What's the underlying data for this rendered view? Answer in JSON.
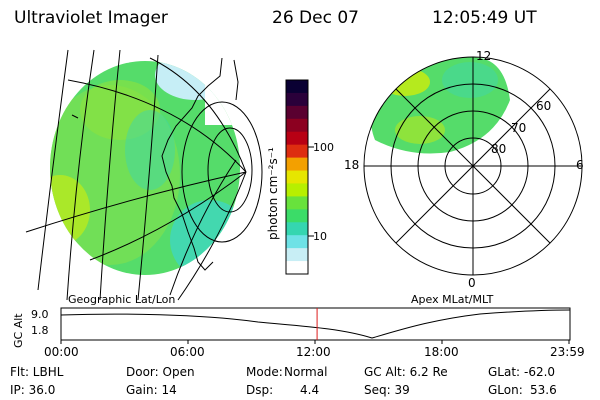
{
  "header": {
    "instrument": "Ultraviolet Imager",
    "date": "26 Dec 07",
    "time": "12:05:49 UT"
  },
  "colorbar": {
    "unit_label": "photon cm⁻²s⁻¹",
    "ticks": [
      "100",
      "10"
    ],
    "colors": [
      "#0a0033",
      "#2a003a",
      "#5a0030",
      "#8c0020",
      "#b80014",
      "#dd2d10",
      "#f3a000",
      "#e6e600",
      "#b7ef00",
      "#68e23c",
      "#3bdc68",
      "#35d6b0",
      "#6ee2e6",
      "#c8eef5",
      "#ffffff"
    ]
  },
  "polar_plot": {
    "title": "Apex MLat/MLT",
    "mlt_labels": {
      "top": "12",
      "bottom": "0",
      "left": "18",
      "right": "6"
    },
    "lat_labels": [
      "60",
      "70",
      "80"
    ]
  },
  "geo_plot": {
    "title": "Geographic Lat/Lon"
  },
  "timeline": {
    "axis_title": "GC Alt",
    "y_ticks": [
      "9.0",
      "1.8"
    ],
    "x_ticks": [
      "00:00",
      "06:00",
      "12:00",
      "18:00",
      "23:59"
    ],
    "current_time_fraction": 0.5041
  },
  "info": {
    "col1": [
      "Flt: LBHL",
      "IP: 36.0"
    ],
    "col2": [
      "Door: Open",
      "Gain: 14"
    ],
    "col3_label": [
      "Mode:",
      "Dsp:"
    ],
    "col3_value": [
      "Normal",
      "4.4"
    ],
    "col4": [
      "GC Alt: 6.2 Re",
      "Seq: 39"
    ],
    "col5_label": [
      "GLat:",
      "GLon:"
    ],
    "col5_value": [
      "-62.0",
      "53.6"
    ]
  }
}
